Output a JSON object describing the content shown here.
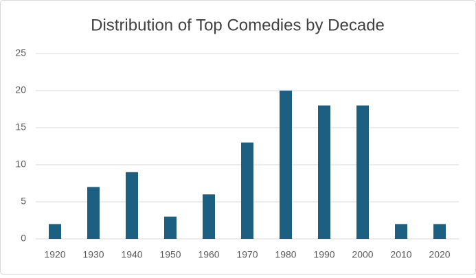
{
  "chart_data": {
    "type": "bar",
    "title": "Distribution of Top Comedies by Decade",
    "categories": [
      "1920",
      "1930",
      "1940",
      "1950",
      "1960",
      "1970",
      "1980",
      "1990",
      "2000",
      "2010",
      "2020"
    ],
    "values": [
      2,
      7,
      9,
      3,
      6,
      13,
      20,
      18,
      18,
      2,
      2
    ],
    "color": "#1c5f80",
    "ylim": [
      0,
      25
    ],
    "yticks": [
      0,
      5,
      10,
      15,
      20,
      25
    ],
    "grid": true
  }
}
